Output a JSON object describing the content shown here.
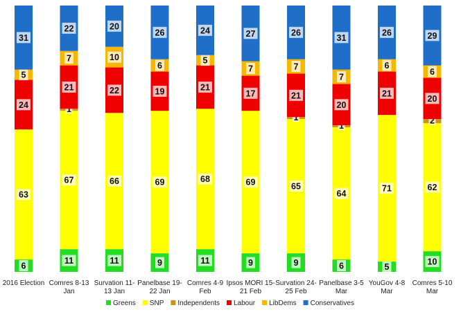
{
  "chart_data": {
    "type": "bar",
    "stacked": true,
    "categories": [
      [
        "2016 Election"
      ],
      [
        "Comres 8-13",
        "Jan"
      ],
      [
        "Survation 11-",
        "13 Jan"
      ],
      [
        "Panelbase 19-",
        "22 Jan"
      ],
      [
        "Comres 4-9",
        "Feb"
      ],
      [
        "Ipsos MORI 15-",
        "21 Feb"
      ],
      [
        "Survation 24-",
        "25 Feb"
      ],
      [
        "Panelbase 3-5",
        "Mar"
      ],
      [
        "YouGov 4-8",
        "Mar"
      ],
      [
        "Comres 5-10",
        "Mar"
      ]
    ],
    "series": [
      {
        "name": "Greens",
        "color": "#22dd22",
        "values": [
          6,
          11,
          11,
          9,
          11,
          9,
          9,
          6,
          5,
          10
        ]
      },
      {
        "name": "SNP",
        "color": "#ffff00",
        "values": [
          63,
          67,
          66,
          69,
          68,
          69,
          65,
          64,
          71,
          62
        ]
      },
      {
        "name": "Independents",
        "color": "#c8961e",
        "values": [
          0,
          1,
          0,
          0,
          0,
          0,
          1,
          1,
          0,
          2
        ]
      },
      {
        "name": "Labour",
        "color": "#ee0000",
        "values": [
          24,
          21,
          22,
          19,
          21,
          17,
          21,
          20,
          21,
          20
        ]
      },
      {
        "name": "LibDems",
        "color": "#f5b800",
        "values": [
          5,
          7,
          10,
          6,
          5,
          7,
          7,
          7,
          6,
          6
        ]
      },
      {
        "name": "Conservatives",
        "color": "#1f6fc8",
        "values": [
          31,
          22,
          20,
          26,
          24,
          27,
          26,
          31,
          26,
          29
        ]
      }
    ],
    "legend": {
      "position": "bottom"
    },
    "grid": false,
    "axes_visible": false
  }
}
